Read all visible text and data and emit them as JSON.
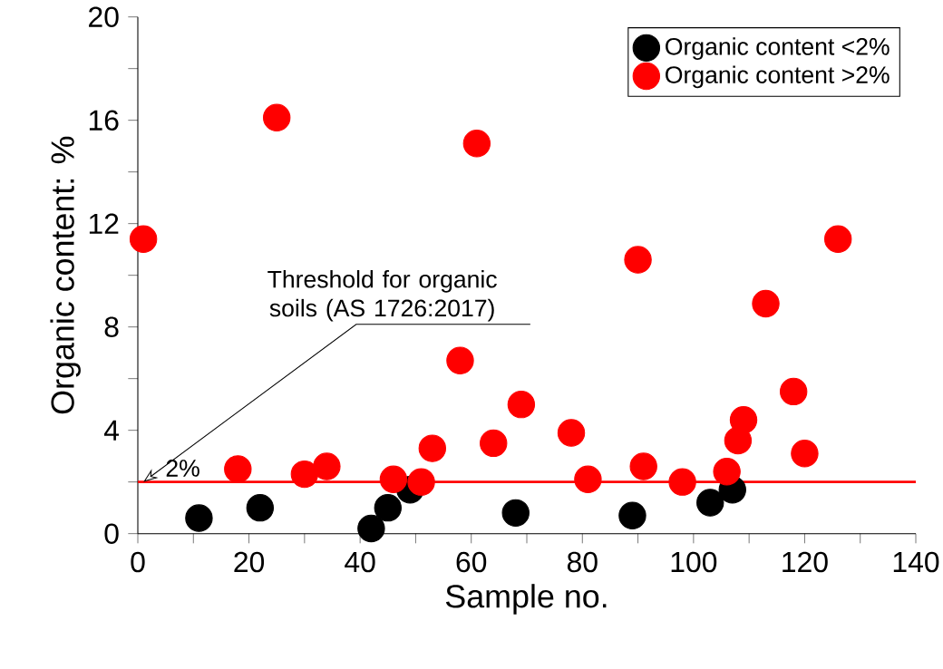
{
  "chart_data": {
    "type": "scatter",
    "xlabel": "Sample no.",
    "ylabel": "Organic content: %",
    "xlim": [
      0,
      140
    ],
    "ylim": [
      0,
      20
    ],
    "xticks": [
      0,
      {
        "value": 10,
        "label": null
      },
      20,
      {
        "value": 30,
        "label": null
      },
      40,
      {
        "value": 50,
        "label": null
      },
      60,
      {
        "value": 70,
        "label": null
      },
      80,
      {
        "value": 90,
        "label": null
      },
      100,
      {
        "value": 110,
        "label": null
      },
      120,
      {
        "value": 130,
        "label": null
      },
      140
    ],
    "yticks": [
      0,
      {
        "value": 2,
        "label": null
      },
      4,
      {
        "value": 6,
        "label": null
      },
      8,
      {
        "value": 10,
        "label": null
      },
      12,
      {
        "value": 14,
        "label": null
      },
      16,
      {
        "value": 18,
        "label": null
      },
      20
    ],
    "marker": "circle",
    "legend": "top right",
    "series": [
      {
        "name": "Organic content <2%",
        "color": "#000000",
        "x": [
          11,
          22,
          42,
          45,
          49,
          68,
          89,
          103,
          107
        ],
        "values": [
          0.6,
          1.0,
          0.2,
          1.0,
          1.7,
          0.8,
          0.7,
          1.2,
          1.7
        ]
      },
      {
        "name": "Organic content >2%",
        "color": "#ff0000",
        "x": [
          1,
          18,
          25,
          30,
          34,
          46,
          51,
          53,
          58,
          61,
          64,
          69,
          78,
          81,
          90,
          91,
          98,
          106,
          108,
          109,
          113,
          118,
          120,
          126
        ],
        "values": [
          11.4,
          2.5,
          16.1,
          2.3,
          2.6,
          2.1,
          2.0,
          3.3,
          6.7,
          15.1,
          3.5,
          5.0,
          3.9,
          2.1,
          10.6,
          2.6,
          2.0,
          2.4,
          3.6,
          4.4,
          8.9,
          5.5,
          3.1,
          11.4
        ]
      }
    ],
    "ref_lines": [
      {
        "axis": "y",
        "value": 2,
        "label": "2%",
        "color": "#ff0000"
      }
    ],
    "annotations": [
      {
        "text": "Threshold for organic soils (AS 1726:2017)",
        "x": 1,
        "y": 2
      }
    ]
  }
}
